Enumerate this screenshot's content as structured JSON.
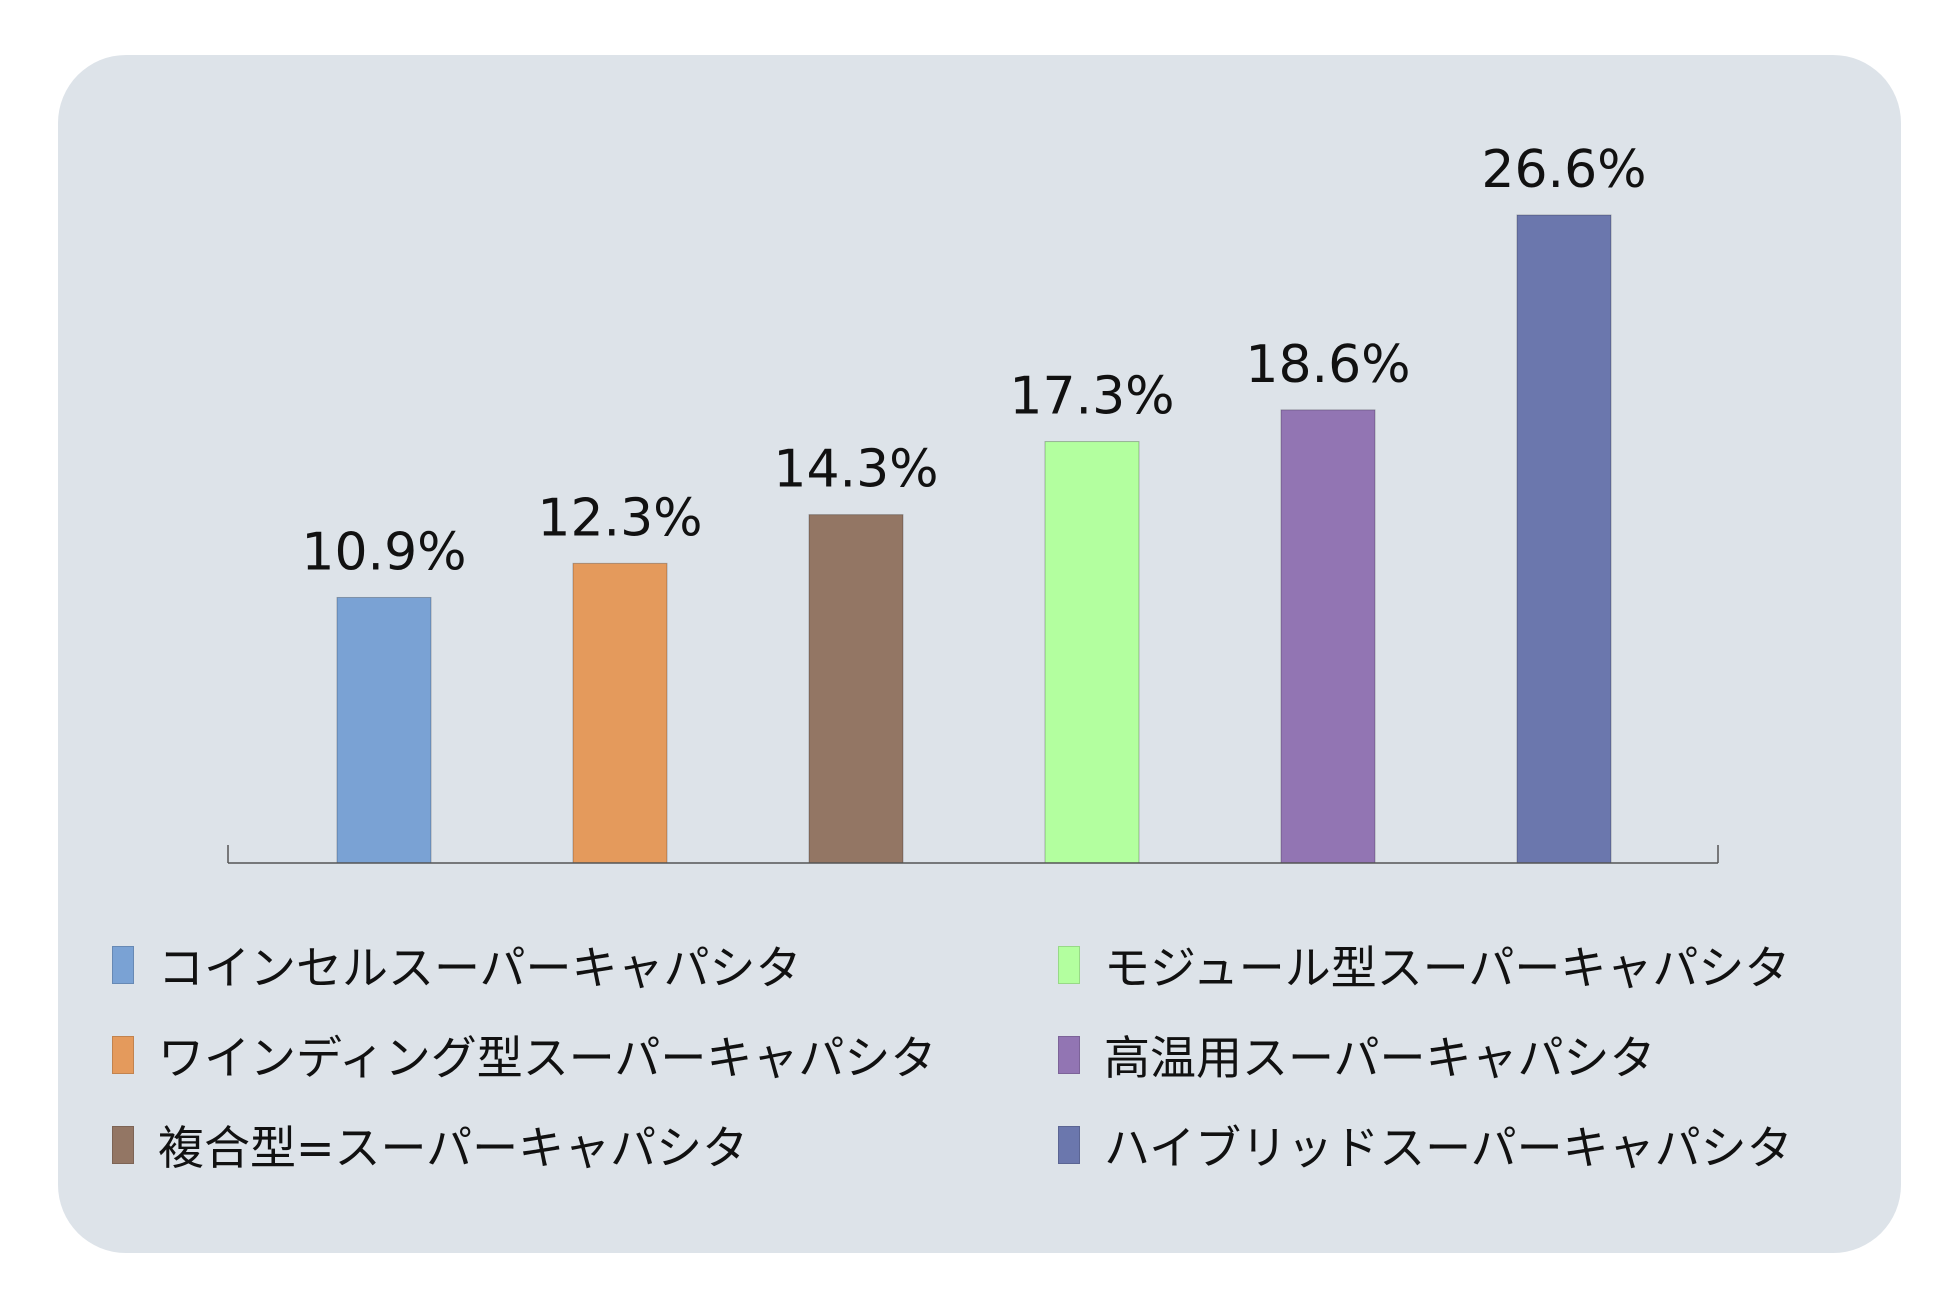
{
  "chart_data": {
    "type": "bar",
    "title": "",
    "xlabel": "",
    "ylabel": "",
    "ylim": [
      0,
      30
    ],
    "grid": false,
    "legend_position": "bottom",
    "categories": [
      "コインセルスーパーキャパシタ",
      "ワインディング型スーパーキャパシタ",
      "複合型=スーパーキャパシタ",
      "モジュール型スーパーキャパシタ",
      "高温用スーパーキャパシタ",
      "ハイブリッドスーパーキャパシタ"
    ],
    "values": [
      10.9,
      12.3,
      14.3,
      17.3,
      18.6,
      26.6
    ],
    "data_labels": [
      "10.9%",
      "12.3%",
      "14.3%",
      "17.3%",
      "18.6%",
      "26.6%"
    ],
    "colors": [
      "#7aa2d4",
      "#e49a5c",
      "#937664",
      "#b3ff9f",
      "#9275b3",
      "#6b77ad"
    ]
  }
}
